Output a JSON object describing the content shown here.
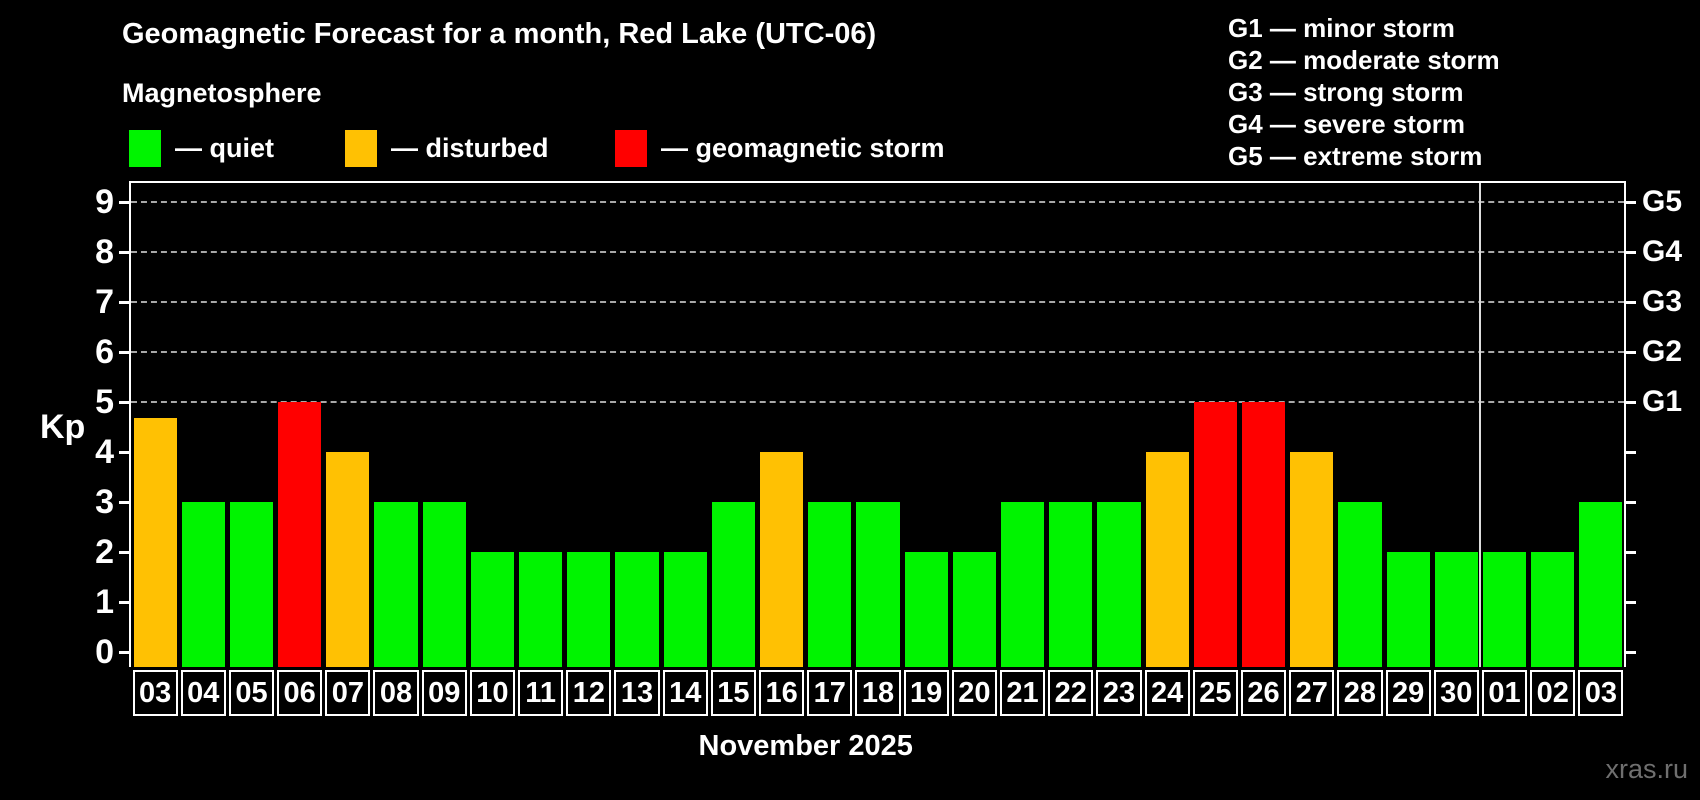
{
  "header": {
    "title": "Geomagnetic Forecast for a month, Red Lake (UTC-06)",
    "subtitle": "Magnetosphere"
  },
  "legend": {
    "items": [
      {
        "label": "— quiet",
        "status": "quiet",
        "color": "#00f400"
      },
      {
        "label": "— disturbed",
        "status": "disturbed",
        "color": "#ffc103"
      },
      {
        "label": "— geomagnetic storm",
        "status": "storm",
        "color": "#ff0000"
      }
    ]
  },
  "g_legend": [
    "G1 — minor storm",
    "G2 — moderate storm",
    "G3 — strong storm",
    "G4 — severe storm",
    "G5 — extreme storm"
  ],
  "watermark": "xras.ru",
  "colors": {
    "quiet": "#00f400",
    "disturbed": "#ffc103",
    "storm": "#ff0000",
    "grid": "#a8a8a8",
    "axis": "#ffffff",
    "month_separator": "#dddddd",
    "watermark_text": "#6f6f6f",
    "background": "#000000"
  },
  "chart_data": {
    "type": "bar",
    "title": "Geomagnetic Forecast for a month, Red Lake (UTC-06)",
    "subtitle": "Magnetosphere",
    "xlabel": "November 2025",
    "ylabel": "Kp",
    "ylim": [
      -0.3,
      9.4
    ],
    "yticks": [
      0,
      1,
      2,
      3,
      4,
      5,
      6,
      7,
      8,
      9
    ],
    "gridlines_at": [
      5,
      6,
      7,
      8,
      9
    ],
    "grid": "dashed horizontal lines at Kp 5-9 only",
    "legend_position": "top",
    "categories": [
      "03",
      "04",
      "05",
      "06",
      "07",
      "08",
      "09",
      "10",
      "11",
      "12",
      "13",
      "14",
      "15",
      "16",
      "17",
      "18",
      "19",
      "20",
      "21",
      "22",
      "23",
      "24",
      "25",
      "26",
      "27",
      "28",
      "29",
      "30",
      "01",
      "02",
      "03"
    ],
    "values": [
      4.67,
      3,
      3,
      5,
      4,
      3,
      3,
      2,
      2,
      2,
      2,
      2,
      3,
      4,
      3,
      3,
      2,
      2,
      3,
      3,
      3,
      4,
      5,
      5,
      4,
      3,
      2,
      2,
      2,
      2,
      3
    ],
    "statuses": [
      "disturbed",
      "quiet",
      "quiet",
      "storm",
      "disturbed",
      "quiet",
      "quiet",
      "quiet",
      "quiet",
      "quiet",
      "quiet",
      "quiet",
      "quiet",
      "disturbed",
      "quiet",
      "quiet",
      "quiet",
      "quiet",
      "quiet",
      "quiet",
      "quiet",
      "disturbed",
      "storm",
      "storm",
      "disturbed",
      "quiet",
      "quiet",
      "quiet",
      "quiet",
      "quiet",
      "quiet"
    ],
    "right_axis_labels": [
      {
        "label": "G1",
        "kp": 5
      },
      {
        "label": "G2",
        "kp": 6
      },
      {
        "label": "G3",
        "kp": 7
      },
      {
        "label": "G4",
        "kp": 8
      },
      {
        "label": "G5",
        "kp": 9
      }
    ],
    "month_separator_boundary_index": 28,
    "november_day_count": 28
  }
}
